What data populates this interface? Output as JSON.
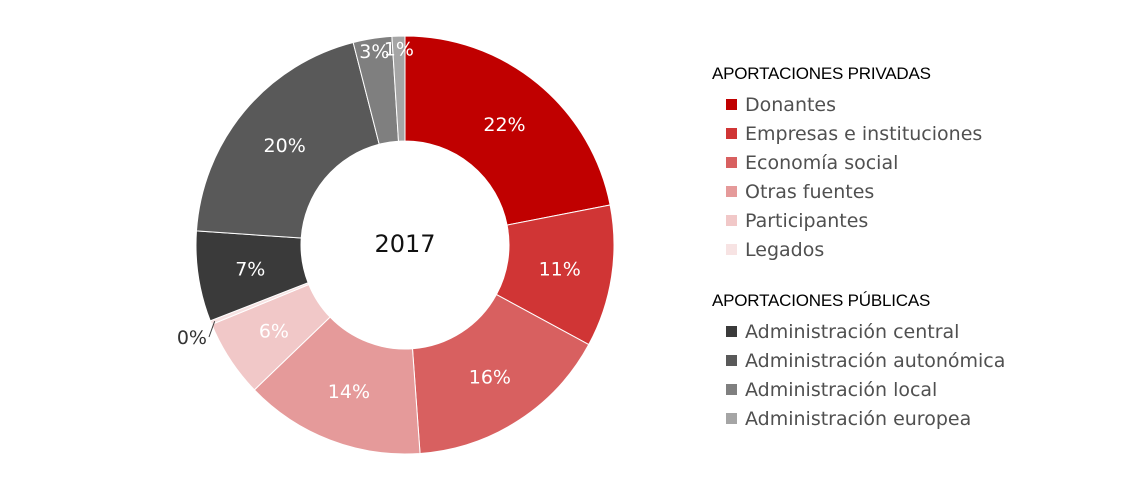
{
  "chart_data": {
    "type": "pie",
    "donut": true,
    "center_label": "2017",
    "slices": [
      {
        "label": "Donantes",
        "value": 22,
        "display": "22%",
        "color": "#c00000"
      },
      {
        "label": "Empresas e instituciones",
        "value": 11,
        "display": "11%",
        "color": "#d03535"
      },
      {
        "label": "Economía social",
        "value": 16,
        "display": "16%",
        "color": "#d86060"
      },
      {
        "label": "Otras fuentes",
        "value": 14,
        "display": "14%",
        "color": "#e59a9a"
      },
      {
        "label": "Participantes",
        "value": 6,
        "display": "6%",
        "color": "#f1c8c8"
      },
      {
        "label": "Legados",
        "value": 0.3,
        "display": "0%",
        "color": "#f7e3e3"
      },
      {
        "label": "Administración central",
        "value": 7,
        "display": "7%",
        "color": "#3a3a3a"
      },
      {
        "label": "Administración autonómica",
        "value": 20,
        "display": "20%",
        "color": "#595959"
      },
      {
        "label": "Administración local",
        "value": 3,
        "display": "3%",
        "color": "#7f7f7f"
      },
      {
        "label": "Administración europea",
        "value": 1,
        "display": "1%",
        "color": "#a5a5a5"
      }
    ],
    "legend": {
      "placement": "right",
      "groups": [
        {
          "title": "APORTACIONES PRIVADAS",
          "items": [
            {
              "label": "Donantes",
              "color": "#c00000"
            },
            {
              "label": "Empresas e instituciones",
              "color": "#d03535"
            },
            {
              "label": "Economía social",
              "color": "#d86060"
            },
            {
              "label": "Otras fuentes",
              "color": "#e59a9a"
            },
            {
              "label": "Participantes",
              "color": "#f1c8c8"
            },
            {
              "label": "Legados",
              "color": "#f7e3e3"
            }
          ]
        },
        {
          "title": "APORTACIONES PÚBLICAS",
          "items": [
            {
              "label": "Administración central",
              "color": "#3a3a3a"
            },
            {
              "label": "Administración autonómica",
              "color": "#595959"
            },
            {
              "label": "Administración local",
              "color": "#7f7f7f"
            },
            {
              "label": "Administración europea",
              "color": "#a5a5a5"
            }
          ]
        }
      ]
    }
  }
}
